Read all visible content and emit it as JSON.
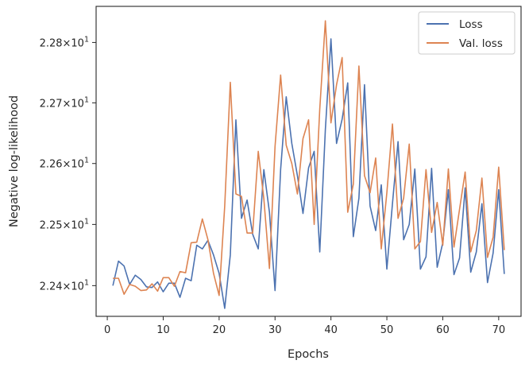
{
  "chart_data": {
    "type": "line",
    "xlabel": "Epochs",
    "ylabel": "Negative log-likelihood",
    "xlim": [
      -2,
      74
    ],
    "ylim": [
      22.35,
      22.86
    ],
    "y_scale": "log",
    "grid": false,
    "legend_position": "top-right",
    "x_ticks": [
      0,
      10,
      20,
      30,
      40,
      50,
      60,
      70
    ],
    "y_ticks": [
      {
        "value": 22.4,
        "base": "2.24",
        "mult": "×10",
        "exp": "1"
      },
      {
        "value": 22.5,
        "base": "2.25",
        "mult": "×10",
        "exp": "1"
      },
      {
        "value": 22.6,
        "base": "2.26",
        "mult": "×10",
        "exp": "1"
      },
      {
        "value": 22.7,
        "base": "2.27",
        "mult": "×10",
        "exp": "1"
      },
      {
        "value": 22.8,
        "base": "2.28",
        "mult": "×10",
        "exp": "1"
      }
    ],
    "x": [
      1,
      2,
      3,
      4,
      5,
      6,
      7,
      8,
      9,
      10,
      11,
      12,
      13,
      14,
      15,
      16,
      17,
      18,
      19,
      20,
      21,
      22,
      23,
      24,
      25,
      26,
      27,
      28,
      29,
      30,
      31,
      32,
      33,
      34,
      35,
      36,
      37,
      38,
      39,
      40,
      41,
      42,
      43,
      44,
      45,
      46,
      47,
      48,
      49,
      50,
      51,
      52,
      53,
      54,
      55,
      56,
      57,
      58,
      59,
      60,
      61,
      62,
      63,
      64,
      65,
      66,
      67,
      68,
      69,
      70,
      71
    ],
    "series": [
      {
        "name": "Loss",
        "color": "#4c72b0",
        "values": [
          22.4,
          22.44,
          22.432,
          22.402,
          22.417,
          22.41,
          22.398,
          22.397,
          22.406,
          22.39,
          22.404,
          22.404,
          22.381,
          22.412,
          22.408,
          22.466,
          22.46,
          22.474,
          22.45,
          22.42,
          22.363,
          22.45,
          22.672,
          22.51,
          22.54,
          22.484,
          22.46,
          22.59,
          22.52,
          22.392,
          22.59,
          22.71,
          22.633,
          22.58,
          22.518,
          22.593,
          22.62,
          22.455,
          22.656,
          22.806,
          22.633,
          22.673,
          22.733,
          22.48,
          22.543,
          22.73,
          22.53,
          22.49,
          22.565,
          22.427,
          22.534,
          22.636,
          22.475,
          22.5,
          22.591,
          22.427,
          22.447,
          22.592,
          22.43,
          22.47,
          22.557,
          22.418,
          22.445,
          22.56,
          22.422,
          22.455,
          22.534,
          22.405,
          22.453,
          22.557,
          22.419
        ]
      },
      {
        "name": "Val. loss",
        "color": "#dd8452",
        "values": [
          22.412,
          22.412,
          22.386,
          22.402,
          22.399,
          22.392,
          22.393,
          22.403,
          22.391,
          22.413,
          22.413,
          22.399,
          22.423,
          22.421,
          22.47,
          22.471,
          22.509,
          22.475,
          22.42,
          22.384,
          22.53,
          22.734,
          22.55,
          22.546,
          22.486,
          22.486,
          22.62,
          22.542,
          22.428,
          22.628,
          22.746,
          22.63,
          22.6,
          22.55,
          22.641,
          22.672,
          22.5,
          22.69,
          22.836,
          22.667,
          22.73,
          22.775,
          22.52,
          22.566,
          22.761,
          22.58,
          22.552,
          22.609,
          22.46,
          22.552,
          22.665,
          22.51,
          22.543,
          22.632,
          22.46,
          22.472,
          22.59,
          22.487,
          22.536,
          22.466,
          22.591,
          22.463,
          22.525,
          22.586,
          22.455,
          22.49,
          22.576,
          22.446,
          22.479,
          22.594,
          22.458
        ]
      }
    ]
  }
}
